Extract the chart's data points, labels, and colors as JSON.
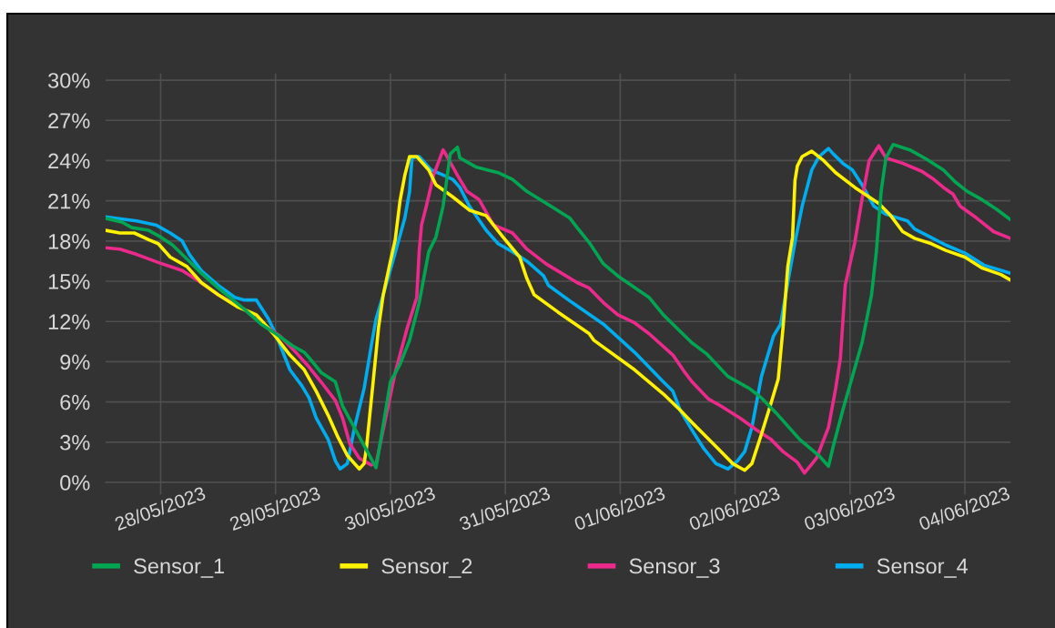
{
  "chart_data": {
    "type": "line",
    "xlim": [
      "2023-05-27T12:30",
      "2023-06-04T09:30"
    ],
    "xticks": [
      {
        "value": "2023-05-28",
        "label": "28/05/2023"
      },
      {
        "value": "2023-05-29",
        "label": "29/05/2023"
      },
      {
        "value": "2023-05-30",
        "label": "30/05/2023"
      },
      {
        "value": "2023-05-31",
        "label": "31/05/2023"
      },
      {
        "value": "2023-06-01",
        "label": "01/06/2023"
      },
      {
        "value": "2023-06-02",
        "label": "02/06/2023"
      },
      {
        "value": "2023-06-03",
        "label": "03/06/2023"
      },
      {
        "value": "2023-06-04",
        "label": "04/06/2023"
      }
    ],
    "ylim": [
      0,
      30.5
    ],
    "yticks": [
      {
        "value": 0,
        "label": "0%"
      },
      {
        "value": 3,
        "label": "3%"
      },
      {
        "value": 6,
        "label": "6%"
      },
      {
        "value": 9,
        "label": "9%"
      },
      {
        "value": 12,
        "label": "12%"
      },
      {
        "value": 15,
        "label": "15%"
      },
      {
        "value": 18,
        "label": "18%"
      },
      {
        "value": 21,
        "label": "21%"
      },
      {
        "value": 24,
        "label": "24%"
      },
      {
        "value": 27,
        "label": "27%"
      },
      {
        "value": 30,
        "label": "30%"
      }
    ],
    "grid": true,
    "legend": "bottom",
    "series": [
      {
        "name": "Sensor_1",
        "color": "#00a651",
        "x": [
          "2023-05-27T12:30",
          "2023-05-27T16:00",
          "2023-05-27T18:00",
          "2023-05-27T21:30",
          "2023-05-28T00:00",
          "2023-05-28T02:30",
          "2023-05-28T04:30",
          "2023-05-28T08:30",
          "2023-05-28T12:00",
          "2023-05-28T17:30",
          "2023-05-28T21:00",
          "2023-05-29T00:00",
          "2023-05-29T03:30",
          "2023-05-29T06:00",
          "2023-05-29T07:00",
          "2023-05-29T09:30",
          "2023-05-29T12:30",
          "2023-05-29T14:00",
          "2023-05-29T17:30",
          "2023-05-29T21:00",
          "2023-05-30T00:00",
          "2023-05-30T02:00",
          "2023-05-30T04:00",
          "2023-05-30T06:00",
          "2023-05-30T08:00",
          "2023-05-30T09:30",
          "2023-05-30T11:00",
          "2023-05-30T12:30",
          "2023-05-30T14:00",
          "2023-05-30T14:30",
          "2023-05-30T18:00",
          "2023-05-30T22:30",
          "2023-05-31T01:30",
          "2023-05-31T04:30",
          "2023-05-31T09:30",
          "2023-05-31T13:30",
          "2023-05-31T15:00",
          "2023-05-31T17:30",
          "2023-05-31T20:30",
          "2023-05-31T23:30",
          "2023-06-01T06:00",
          "2023-06-01T09:00",
          "2023-06-01T11:00",
          "2023-06-01T15:00",
          "2023-06-01T18:00",
          "2023-06-01T22:30",
          "2023-06-02T03:00",
          "2023-06-02T05:30",
          "2023-06-02T08:30",
          "2023-06-02T13:30",
          "2023-06-02T17:30",
          "2023-06-02T19:30",
          "2023-06-02T20:30",
          "2023-06-02T22:30",
          "2023-06-03T02:30",
          "2023-06-03T04:30",
          "2023-06-03T05:30",
          "2023-06-03T06:30",
          "2023-06-03T07:30",
          "2023-06-03T09:00",
          "2023-06-03T12:30",
          "2023-06-03T16:00",
          "2023-06-03T19:30",
          "2023-06-03T22:00",
          "2023-06-04T00:30",
          "2023-06-04T03:30",
          "2023-06-04T06:30",
          "2023-06-04T09:30"
        ],
        "values": [
          19.7,
          19.4,
          19.0,
          18.8,
          18.3,
          17.7,
          17.0,
          15.6,
          14.5,
          12.9,
          11.8,
          11.1,
          10.2,
          9.7,
          9.3,
          8.2,
          7.5,
          5.7,
          3.4,
          1.1,
          7.5,
          8.8,
          10.6,
          13.4,
          17.2,
          18.3,
          20.6,
          24.5,
          25.0,
          24.2,
          23.5,
          23.1,
          22.6,
          21.7,
          20.6,
          19.7,
          19.0,
          17.9,
          16.3,
          15.4,
          13.8,
          12.5,
          11.8,
          10.4,
          9.6,
          7.9,
          7.0,
          6.3,
          5.2,
          3.2,
          2.0,
          1.2,
          2.7,
          5.4,
          10.4,
          14.0,
          17.2,
          21.7,
          24.2,
          25.2,
          24.8,
          24.1,
          23.3,
          22.4,
          21.7,
          21.1,
          20.4,
          19.6
        ]
      },
      {
        "name": "Sensor_2",
        "color": "#fff200",
        "x": [
          "2023-05-27T12:30",
          "2023-05-27T15:30",
          "2023-05-27T18:30",
          "2023-05-27T21:30",
          "2023-05-27T23:30",
          "2023-05-28T02:00",
          "2023-05-28T05:30",
          "2023-05-28T08:30",
          "2023-05-28T12:00",
          "2023-05-28T16:00",
          "2023-05-28T20:00",
          "2023-05-28T23:30",
          "2023-05-29T03:00",
          "2023-05-29T06:00",
          "2023-05-29T08:30",
          "2023-05-29T11:00",
          "2023-05-29T13:00",
          "2023-05-29T15:00",
          "2023-05-29T17:30",
          "2023-05-29T18:30",
          "2023-05-29T19:00",
          "2023-05-29T20:30",
          "2023-05-29T21:30",
          "2023-05-29T22:30",
          "2023-05-30T00:00",
          "2023-05-30T01:00",
          "2023-05-30T02:00",
          "2023-05-30T03:00",
          "2023-05-30T04:00",
          "2023-05-30T05:30",
          "2023-05-30T08:00",
          "2023-05-30T09:30",
          "2023-05-30T13:00",
          "2023-05-30T16:30",
          "2023-05-30T20:00",
          "2023-05-30T23:30",
          "2023-05-31T03:00",
          "2023-05-31T04:30",
          "2023-05-31T06:00",
          "2023-05-31T11:00",
          "2023-05-31T17:30",
          "2023-05-31T18:30",
          "2023-06-01T03:00",
          "2023-06-01T09:00",
          "2023-06-01T12:30",
          "2023-06-01T16:00",
          "2023-06-01T20:30",
          "2023-06-01T23:30",
          "2023-06-02T02:00",
          "2023-06-02T03:30",
          "2023-06-02T05:30",
          "2023-06-02T07:30",
          "2023-06-02T09:00",
          "2023-06-02T10:00",
          "2023-06-02T11:00",
          "2023-06-02T12:00",
          "2023-06-02T12:30",
          "2023-06-02T13:00",
          "2023-06-02T14:00",
          "2023-06-02T16:00",
          "2023-06-02T18:30",
          "2023-06-02T21:00",
          "2023-06-03T01:00",
          "2023-06-03T06:00",
          "2023-06-03T08:30",
          "2023-06-03T11:00",
          "2023-06-03T13:30",
          "2023-06-03T17:00",
          "2023-06-03T20:00",
          "2023-06-04T00:00",
          "2023-06-04T03:30",
          "2023-06-04T07:30",
          "2023-06-04T09:30"
        ],
        "values": [
          18.8,
          18.6,
          18.6,
          18.1,
          17.8,
          16.8,
          16.1,
          14.9,
          14.0,
          13.1,
          12.5,
          11.1,
          9.5,
          8.4,
          6.8,
          5.0,
          3.4,
          2.0,
          1.0,
          1.4,
          2.6,
          7.9,
          11.5,
          14.0,
          16.5,
          18.1,
          21.0,
          22.9,
          24.3,
          24.3,
          23.3,
          22.2,
          21.3,
          20.3,
          19.9,
          18.3,
          16.8,
          15.2,
          14.0,
          12.7,
          11.1,
          10.6,
          8.4,
          6.6,
          5.4,
          4.1,
          2.5,
          1.4,
          0.9,
          1.4,
          3.6,
          5.9,
          7.7,
          11.5,
          16.1,
          18.3,
          22.5,
          23.6,
          24.3,
          24.7,
          24.0,
          23.1,
          22.0,
          20.8,
          19.9,
          18.7,
          18.2,
          17.8,
          17.3,
          16.8,
          16.0,
          15.5,
          15.1
        ]
      },
      {
        "name": "Sensor_3",
        "color": "#ec2a8c",
        "x": [
          "2023-05-27T12:30",
          "2023-05-27T15:30",
          "2023-05-27T19:00",
          "2023-05-27T23:30",
          "2023-05-28T04:30",
          "2023-05-28T08:00",
          "2023-05-28T12:00",
          "2023-05-28T17:30",
          "2023-05-28T21:00",
          "2023-05-29T01:00",
          "2023-05-29T04:30",
          "2023-05-29T07:00",
          "2023-05-29T09:30",
          "2023-05-29T12:30",
          "2023-05-29T14:00",
          "2023-05-29T15:30",
          "2023-05-29T17:30",
          "2023-05-29T20:00",
          "2023-05-29T21:00",
          "2023-05-29T23:00",
          "2023-05-30T01:00",
          "2023-05-30T03:30",
          "2023-05-30T05:30",
          "2023-05-30T06:00",
          "2023-05-30T06:30",
          "2023-05-30T07:30",
          "2023-05-30T09:00",
          "2023-05-30T11:00",
          "2023-05-30T12:00",
          "2023-05-30T14:00",
          "2023-05-30T16:00",
          "2023-05-30T18:30",
          "2023-05-30T21:30",
          "2023-05-31T01:30",
          "2023-05-31T04:30",
          "2023-05-31T08:30",
          "2023-05-31T15:00",
          "2023-05-31T17:30",
          "2023-05-31T20:30",
          "2023-05-31T23:30",
          "2023-06-01T03:00",
          "2023-06-01T06:00",
          "2023-06-01T11:00",
          "2023-06-01T13:30",
          "2023-06-01T15:00",
          "2023-06-01T18:30",
          "2023-06-01T21:00",
          "2023-06-02T01:00",
          "2023-06-02T04:30",
          "2023-06-02T07:30",
          "2023-06-02T10:00",
          "2023-06-02T13:00",
          "2023-06-02T14:30",
          "2023-06-02T17:00",
          "2023-06-02T19:30",
          "2023-06-02T21:00",
          "2023-06-02T22:00",
          "2023-06-02T23:00",
          "2023-06-03T01:00",
          "2023-06-03T02:30",
          "2023-06-03T04:00",
          "2023-06-03T06:00",
          "2023-06-03T07:30",
          "2023-06-03T11:00",
          "2023-06-03T15:00",
          "2023-06-03T17:30",
          "2023-06-03T19:30",
          "2023-06-03T21:30",
          "2023-06-03T23:00",
          "2023-06-04T02:30",
          "2023-06-04T06:00",
          "2023-06-04T09:30"
        ],
        "values": [
          17.5,
          17.4,
          17.0,
          16.4,
          15.8,
          15.0,
          14.0,
          12.9,
          11.9,
          10.9,
          9.6,
          8.6,
          7.5,
          6.1,
          4.8,
          2.9,
          1.8,
          1.3,
          1.4,
          4.8,
          8.2,
          11.5,
          13.8,
          17.2,
          19.2,
          20.6,
          22.9,
          24.8,
          24.2,
          22.9,
          21.7,
          21.1,
          19.2,
          18.6,
          17.4,
          16.3,
          14.9,
          14.5,
          13.4,
          12.5,
          11.9,
          11.1,
          9.5,
          8.2,
          7.5,
          6.2,
          5.7,
          4.8,
          3.9,
          3.2,
          2.3,
          1.5,
          0.7,
          1.8,
          4.1,
          7.0,
          9.3,
          14.7,
          17.9,
          21.1,
          24.0,
          25.1,
          24.2,
          23.8,
          23.2,
          22.6,
          22.0,
          21.5,
          20.6,
          19.7,
          18.7,
          18.2
        ]
      },
      {
        "name": "Sensor_4",
        "color": "#00aeef",
        "x": [
          "2023-05-27T12:30",
          "2023-05-27T19:00",
          "2023-05-27T23:00",
          "2023-05-28T02:00",
          "2023-05-28T04:30",
          "2023-05-28T06:00",
          "2023-05-28T08:30",
          "2023-05-28T12:00",
          "2023-05-28T15:30",
          "2023-05-28T17:30",
          "2023-05-28T20:00",
          "2023-05-28T22:30",
          "2023-05-29T00:00",
          "2023-05-29T03:00",
          "2023-05-29T05:30",
          "2023-05-29T07:00",
          "2023-05-29T08:30",
          "2023-05-29T11:00",
          "2023-05-29T12:30",
          "2023-05-29T13:30",
          "2023-05-29T15:00",
          "2023-05-29T16:30",
          "2023-05-29T18:30",
          "2023-05-29T20:00",
          "2023-05-29T21:00",
          "2023-05-29T22:30",
          "2023-05-30T00:30",
          "2023-05-30T03:00",
          "2023-05-30T04:00",
          "2023-05-30T04:30",
          "2023-05-30T06:00",
          "2023-05-30T08:30",
          "2023-05-30T10:30",
          "2023-05-30T13:00",
          "2023-05-30T14:30",
          "2023-05-30T16:30",
          "2023-05-30T20:00",
          "2023-05-30T22:30",
          "2023-05-31T01:30",
          "2023-05-31T04:30",
          "2023-05-31T08:00",
          "2023-05-31T09:00",
          "2023-05-31T14:00",
          "2023-05-31T20:30",
          "2023-06-01T03:00",
          "2023-06-01T09:00",
          "2023-06-01T11:00",
          "2023-06-01T12:30",
          "2023-06-01T15:00",
          "2023-06-01T17:30",
          "2023-06-01T20:00",
          "2023-06-01T22:30",
          "2023-06-02T00:30",
          "2023-06-02T02:00",
          "2023-06-02T03:30",
          "2023-06-02T05:30",
          "2023-06-02T08:00",
          "2023-06-02T09:30",
          "2023-06-02T11:00",
          "2023-06-02T12:30",
          "2023-06-02T14:00",
          "2023-06-02T16:00",
          "2023-06-02T17:30",
          "2023-06-02T19:30",
          "2023-06-02T20:30",
          "2023-06-02T22:30",
          "2023-06-03T00:30",
          "2023-06-03T02:30",
          "2023-06-03T05:00",
          "2023-06-03T07:30",
          "2023-06-03T12:00",
          "2023-06-03T13:30",
          "2023-06-03T20:00",
          "2023-06-04T00:00",
          "2023-06-04T04:00",
          "2023-06-04T09:30"
        ],
        "values": [
          19.8,
          19.5,
          19.2,
          18.6,
          18.0,
          17.0,
          15.8,
          14.7,
          13.8,
          13.6,
          13.6,
          12.2,
          11.1,
          8.4,
          7.2,
          6.3,
          4.8,
          3.2,
          1.6,
          1.0,
          1.4,
          4.1,
          7.0,
          10.2,
          12.2,
          14.0,
          16.5,
          19.7,
          21.7,
          24.2,
          24.3,
          23.3,
          23.0,
          22.6,
          22.0,
          20.6,
          18.8,
          17.8,
          17.2,
          16.5,
          15.4,
          14.7,
          13.4,
          11.8,
          9.7,
          7.5,
          6.8,
          5.4,
          3.9,
          2.5,
          1.4,
          1.0,
          1.6,
          2.3,
          4.1,
          7.9,
          10.9,
          11.8,
          14.9,
          17.9,
          20.6,
          23.3,
          24.3,
          24.9,
          24.5,
          23.8,
          23.3,
          22.2,
          20.6,
          20.0,
          19.5,
          18.9,
          17.7,
          17.1,
          16.2,
          15.6
        ]
      }
    ]
  }
}
